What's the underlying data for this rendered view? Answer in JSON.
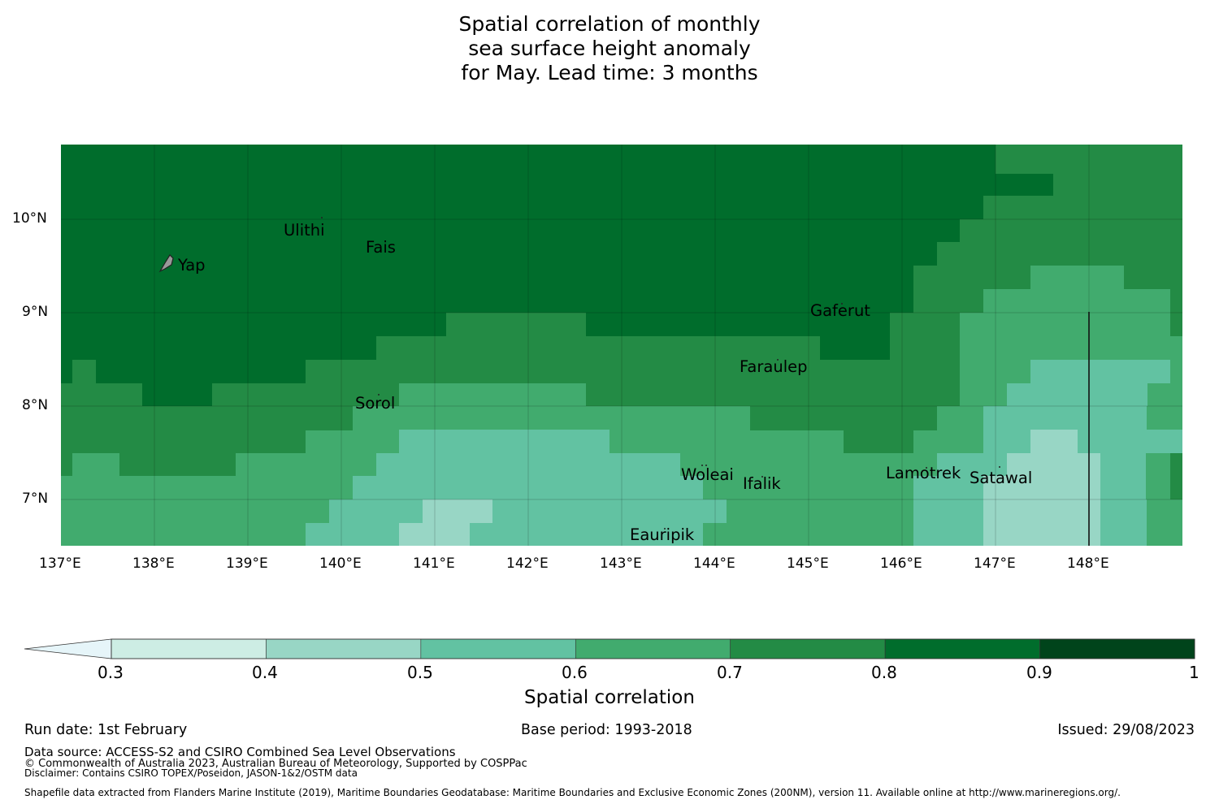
{
  "title": {
    "line1": "Spatial correlation of monthly",
    "line2": "sea surface height anomaly",
    "line3": "for May. Lead time: 3 months"
  },
  "axes": {
    "lat_labels": [
      "10°N",
      "9°N",
      "8°N",
      "7°N"
    ],
    "lon_labels": [
      "137°E",
      "138°E",
      "139°E",
      "140°E",
      "141°E",
      "142°E",
      "143°E",
      "144°E",
      "145°E",
      "146°E",
      "147°E",
      "148°E"
    ]
  },
  "places": {
    "yap": "Yap",
    "ulithi": "Ulithi",
    "fais": "Fais",
    "gaferut": "Gaferut",
    "faraulep": "Faraulep",
    "sorol": "Sorol",
    "woleai": "Woleai",
    "ifalik": "Ifalik",
    "lamotrek": "Lamotrek",
    "satawal": "Satawal",
    "eauripik": "Eauripik"
  },
  "colorbar": {
    "label": "Spatial correlation",
    "ticks": [
      "0.3",
      "0.4",
      "0.5",
      "0.6",
      "0.7",
      "0.8",
      "0.9",
      "1"
    ],
    "colors": [
      "#cdede4",
      "#98d6c5",
      "#62c2a2",
      "#41ab6e",
      "#238b45",
      "#006d2c",
      "#00441b"
    ],
    "extend_color": "#e6f5f9"
  },
  "palette": {
    "c1": "#cdede4",
    "c2": "#98d6c5",
    "c3": "#62c2a2",
    "c4": "#41ab6e",
    "c5": "#238b45",
    "c6": "#006d2c"
  },
  "footer": {
    "run_date": "Run date: 1st February",
    "base_period": "Base period: 1993-2018",
    "issued": "Issued: 29/08/2023",
    "data_source": "Data source: ACCESS-S2 and CSIRO Combined Sea Level Observations",
    "copyright": "© Commonwealth of Australia 2023, Australian Bureau of Meteorology, Supported by COSPPac",
    "disclaimer": "Disclaimer: Contains CSIRO TOPEX/Poseidon, JASON-1&2/OSTM data",
    "shapefile": "Shapefile data extracted from Flanders Marine Institute (2019), Maritime Boundaries Geodatabase: Maritime Boundaries and Exclusive Economic Zones (200NM), version 11. Available online at http://www.marineregions.org/."
  }
}
